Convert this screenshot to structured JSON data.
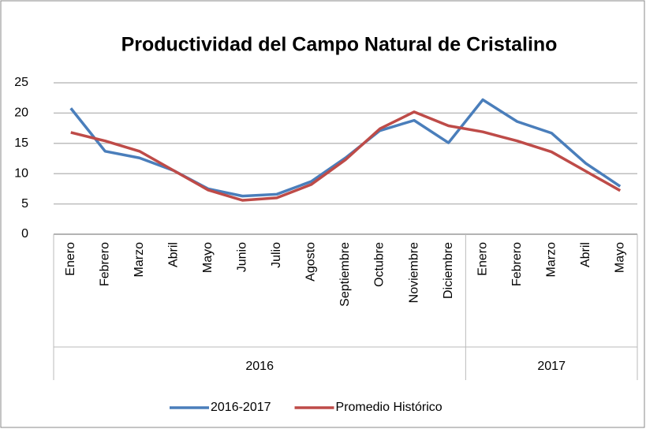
{
  "chart_data": {
    "type": "line",
    "title": "Productividad del Campo Natural de Cristalino",
    "groups": [
      {
        "name": "2016",
        "categories": [
          "Enero",
          "Febrero",
          "Marzo",
          "Abril",
          "Mayo",
          "Junio",
          "Julio",
          "Agosto",
          "Septiembre",
          "Octubre",
          "Noviembre",
          "Diciembre"
        ]
      },
      {
        "name": "2017",
        "categories": [
          "Enero",
          "Febrero",
          "Marzo",
          "Abril",
          "Mayo"
        ]
      }
    ],
    "series": [
      {
        "name": "2016-2017",
        "color": "#4a7ebb",
        "values": [
          20.8,
          13.7,
          12.6,
          10.5,
          7.5,
          6.3,
          6.6,
          8.7,
          12.6,
          17.1,
          18.8,
          15.1,
          22.2,
          18.6,
          16.7,
          11.7,
          7.9
        ]
      },
      {
        "name": "Promedio Histórico",
        "color": "#be4b48",
        "values": [
          16.8,
          15.4,
          13.7,
          10.5,
          7.3,
          5.6,
          6.0,
          8.2,
          12.3,
          17.4,
          20.2,
          17.9,
          16.9,
          15.4,
          13.6,
          10.4,
          7.2
        ]
      }
    ],
    "ylim": [
      0,
      25
    ],
    "yticks": [
      0,
      5,
      10,
      15,
      20,
      25
    ],
    "grid": true,
    "legend": "bottom"
  }
}
